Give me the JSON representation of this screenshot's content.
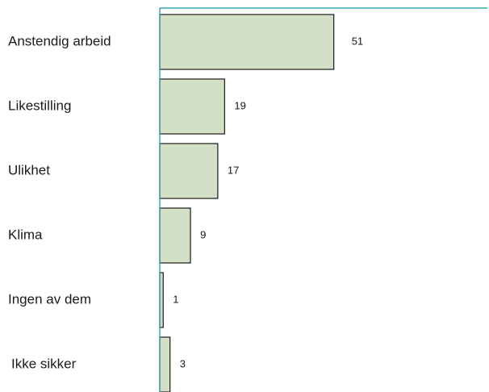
{
  "chart_data": {
    "type": "bar",
    "orientation": "horizontal",
    "categories": [
      "Anstendig arbeid",
      "Likestilling",
      "Ulikhet",
      "Klima",
      "Ingen av dem",
      "Ikke sikker"
    ],
    "values": [
      51,
      19,
      17,
      9,
      1,
      3
    ],
    "xlim": [
      0,
      96
    ],
    "grid": false,
    "legend": "none",
    "colors": {
      "bar_fill": "#d3dfc4",
      "bar_stroke": "#1a1a1a",
      "axis": "#3aa9b4"
    }
  }
}
